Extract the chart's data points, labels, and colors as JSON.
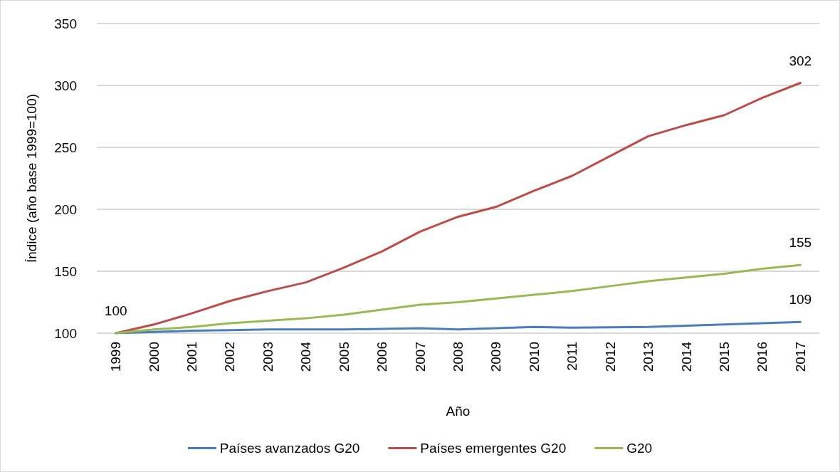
{
  "chart_data": {
    "type": "line",
    "xlabel": "Año",
    "ylabel": "Índice (año base 1999=100)",
    "categories": [
      "1999",
      "2000",
      "2001",
      "2002",
      "2003",
      "2004",
      "2005",
      "2006",
      "2007",
      "2008",
      "2009",
      "2010",
      "2011",
      "2012",
      "2013",
      "2014",
      "2015",
      "2016",
      "2017"
    ],
    "series": [
      {
        "name": "Países avanzados G20",
        "color": "#4a7ebb",
        "values": [
          100,
          101,
          102,
          102.5,
          103,
          103,
          103,
          103.5,
          104,
          103,
          104,
          105,
          104.5,
          104.7,
          105,
          106,
          107,
          108,
          109
        ],
        "value_labels": [
          "100",
          null,
          null,
          null,
          null,
          null,
          null,
          null,
          null,
          null,
          null,
          null,
          null,
          null,
          null,
          null,
          null,
          null,
          "109"
        ]
      },
      {
        "name": "Países emergentes G20",
        "color": "#be4b48",
        "values": [
          100,
          107,
          116,
          126,
          134,
          141,
          153,
          166,
          182,
          194,
          202,
          215,
          227,
          243,
          259,
          268,
          276,
          290,
          302
        ],
        "value_labels": [
          null,
          null,
          null,
          null,
          null,
          null,
          null,
          null,
          null,
          null,
          null,
          null,
          null,
          null,
          null,
          null,
          null,
          null,
          "302"
        ]
      },
      {
        "name": "G20",
        "color": "#98b954",
        "values": [
          100,
          103,
          105,
          108,
          110,
          112,
          115,
          119,
          123,
          125,
          128,
          131,
          134,
          138,
          142,
          145,
          148,
          152,
          155
        ],
        "value_labels": [
          null,
          null,
          null,
          null,
          null,
          null,
          null,
          null,
          null,
          null,
          null,
          null,
          null,
          null,
          null,
          null,
          null,
          null,
          "155"
        ]
      }
    ],
    "ylim": [
      100,
      350
    ],
    "yticks": [
      100,
      150,
      200,
      250,
      300,
      350
    ],
    "grid": "y",
    "legend": "bottom",
    "marker": "none",
    "line_style": "solid"
  }
}
